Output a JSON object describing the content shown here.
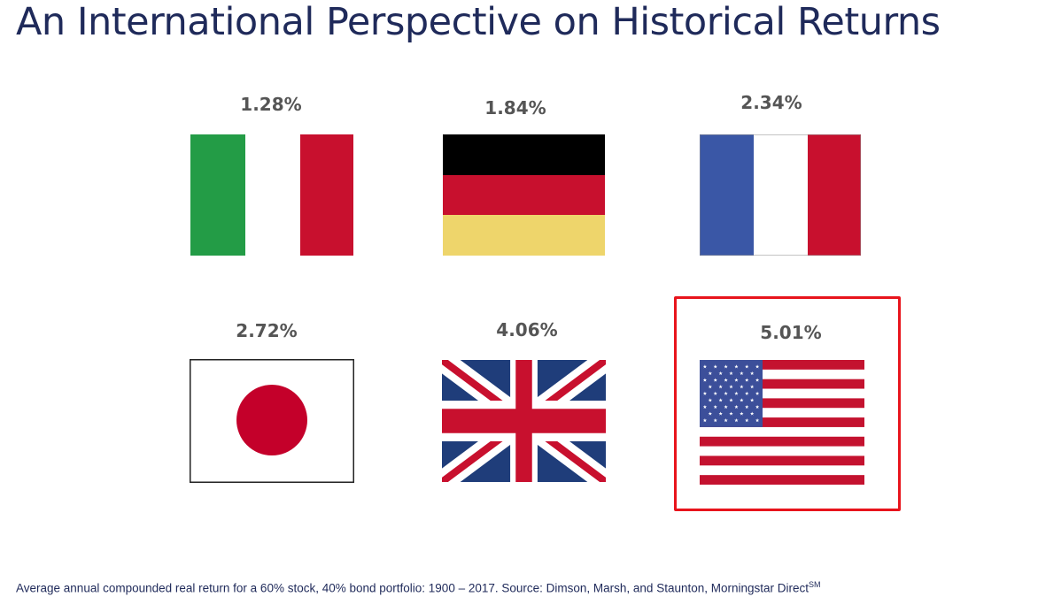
{
  "title": "An International Perspective on Historical Returns",
  "countries": [
    {
      "return": "1.28%",
      "flag_icon": "italy-flag-icon"
    },
    {
      "return": "1.84%",
      "flag_icon": "germany-flag-icon"
    },
    {
      "return": "2.34%",
      "flag_icon": "france-flag-icon"
    },
    {
      "return": "2.72%",
      "flag_icon": "japan-flag-icon"
    },
    {
      "return": "4.06%",
      "flag_icon": "uk-flag-icon"
    },
    {
      "return": "5.01%",
      "flag_icon": "usa-flag-icon",
      "highlighted": true
    }
  ],
  "footnote": {
    "text": "Average annual compounded real return for a 60% stock, 40% bond portfolio: 1900 – 2017. Source: Dimson, Marsh, and Staunton, Morningstar Direct",
    "superscript": "SM"
  },
  "colors": {
    "title": "#1f2a5a",
    "highlight_border": "#e8141c",
    "percent_text": "#555555"
  }
}
